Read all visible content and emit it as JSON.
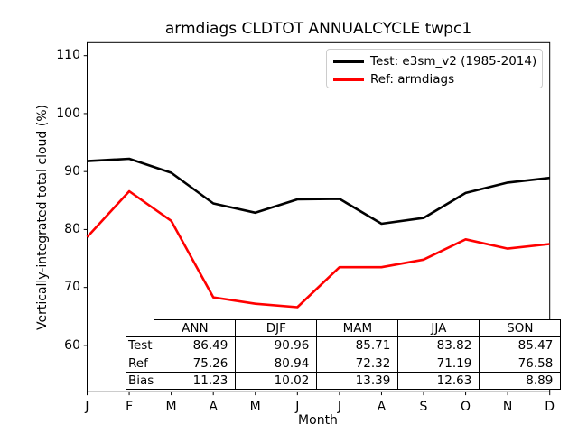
{
  "title": "armdiags CLDTOT ANNUALCYCLE twpc1",
  "colors": {
    "test_line": "#000000",
    "ref_line": "#ff0000",
    "axis": "#000000",
    "legend_border": "#cccccc"
  },
  "legend": {
    "items": [
      {
        "label": "Test: e3sm_v2 (1985-2014)",
        "color": "#000000"
      },
      {
        "label": "Ref: armdiags",
        "color": "#ff0000"
      }
    ]
  },
  "chart_data": {
    "type": "line",
    "title": "armdiags CLDTOT ANNUALCYCLE twpc1",
    "xlabel": "Month",
    "ylabel": "Vertically-integrated total cloud (%)",
    "categories": [
      "J",
      "F",
      "M",
      "A",
      "M",
      "J",
      "J",
      "A",
      "S",
      "O",
      "N",
      "D"
    ],
    "yticks": [
      110,
      100,
      90,
      80,
      70,
      60
    ],
    "ylim": [
      52.0,
      112.24
    ],
    "xlim": [
      0,
      11
    ],
    "grid": false,
    "legend_position": "upper right",
    "series": [
      {
        "name": "Test: e3sm_v2 (1985-2014)",
        "color": "#000000",
        "values": [
          91.8,
          92.2,
          89.8,
          84.5,
          82.9,
          85.2,
          85.3,
          81.0,
          82.0,
          86.3,
          88.1,
          88.9
        ]
      },
      {
        "name": "Ref: armdiags",
        "color": "#ff0000",
        "values": [
          78.7,
          86.6,
          81.5,
          68.3,
          67.2,
          66.6,
          73.5,
          73.5,
          74.8,
          78.3,
          76.7,
          77.5
        ]
      }
    ]
  },
  "table": {
    "col_headers": [
      "ANN",
      "DJF",
      "MAM",
      "JJA",
      "SON"
    ],
    "rows": [
      {
        "label": "Test",
        "values": [
          "86.49",
          "90.96",
          "85.71",
          "83.82",
          "85.47"
        ]
      },
      {
        "label": "Ref",
        "values": [
          "75.26",
          "80.94",
          "72.32",
          "71.19",
          "76.58"
        ]
      },
      {
        "label": "Bias",
        "values": [
          "11.23",
          "10.02",
          "13.39",
          "12.63",
          "8.89"
        ]
      }
    ]
  }
}
